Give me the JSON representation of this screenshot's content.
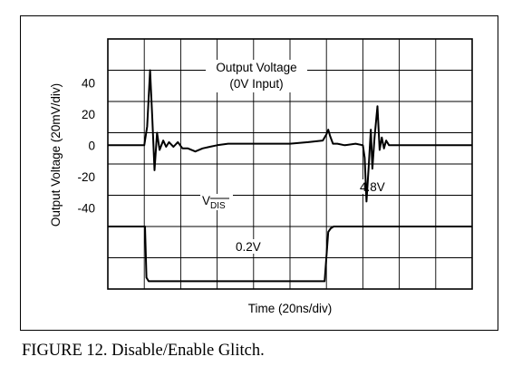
{
  "figure": {
    "caption": "FIGURE 12. Disable/Enable Glitch."
  },
  "chart_data": {
    "type": "line",
    "title": "",
    "xlabel": "Time (20ns/div)",
    "ylabel": "Output Voltage (20mV/div)",
    "y_ticks": [
      40,
      20,
      0,
      -20,
      -40
    ],
    "x_divisions": 10,
    "y_divisions": 8,
    "grid": true,
    "colors": {
      "trace": "#000000",
      "grid": "#000000",
      "background": "#ffffff"
    },
    "annotations": {
      "output_label_line1": "Output Voltage",
      "output_label_line2": "(0V Input)",
      "vdis_main": "V",
      "vdis_sub": "DIS",
      "low_level": "0.2V",
      "high_level": "4.8V"
    },
    "series": [
      {
        "name": "Output Voltage (0V Input)",
        "unit": "mV",
        "x_div": [
          0,
          1.0,
          1.08,
          1.16,
          1.22,
          1.28,
          1.35,
          1.42,
          1.52,
          1.6,
          1.68,
          1.8,
          1.92,
          2.05,
          2.2,
          2.4,
          2.6,
          2.8,
          3.0,
          3.3,
          3.6,
          4.0,
          4.5,
          5.0,
          5.5,
          5.9,
          6.0,
          6.05,
          6.1,
          6.18,
          6.3,
          6.5,
          6.8,
          7.0,
          7.05,
          7.1,
          7.16,
          7.22,
          7.26,
          7.32,
          7.4,
          7.46,
          7.52,
          7.58,
          7.64,
          7.72,
          7.8,
          8.0,
          10.0
        ],
        "mv": [
          0,
          0,
          12,
          48,
          18,
          -16,
          8,
          -3,
          3,
          -1,
          2,
          -1,
          2,
          -2,
          -2,
          -4,
          -2,
          -1,
          0,
          1,
          1,
          1,
          1,
          1,
          2,
          3,
          7,
          10,
          6,
          1,
          1,
          0,
          1,
          0,
          -8,
          -36,
          -14,
          10,
          -15,
          5,
          25,
          -3,
          5,
          -2,
          3,
          0,
          0,
          0,
          0
        ]
      },
      {
        "name": "VDIS",
        "x_div": [
          0,
          1.0,
          1.02,
          1.06,
          1.12,
          1.2,
          1.3,
          1.5,
          2.0,
          4.0,
          5.6,
          5.9,
          5.95,
          6.05,
          6.12,
          6.2,
          7.0,
          10.0
        ],
        "level": [
          "high",
          "high",
          "high",
          "low",
          "low",
          "low",
          "low",
          "low",
          "low",
          "low",
          "low",
          "low",
          "low",
          "high",
          "high",
          "high",
          "high",
          "high"
        ]
      }
    ]
  }
}
